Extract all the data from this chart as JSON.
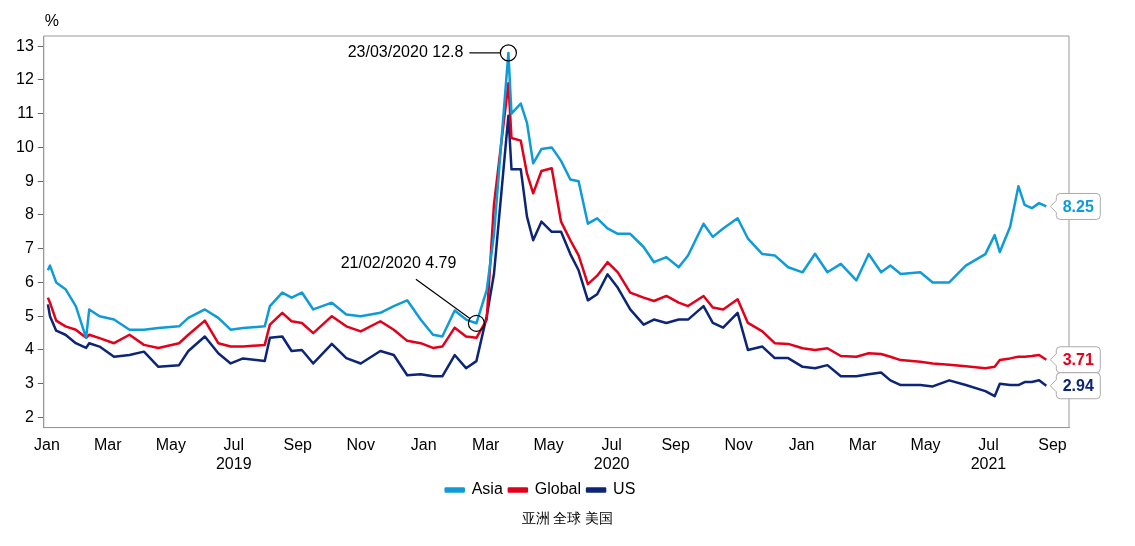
{
  "chart_data": {
    "type": "line",
    "ylabel": "%",
    "x": [
      "2019-01-02",
      "2019-01-04",
      "2019-01-10",
      "2019-01-19",
      "2019-01-29",
      "2019-02-08",
      "2019-02-11",
      "2019-02-21",
      "2019-03-07",
      "2019-03-22",
      "2019-04-05",
      "2019-04-19",
      "2019-05-09",
      "2019-05-18",
      "2019-06-03",
      "2019-06-16",
      "2019-06-28",
      "2019-07-10",
      "2019-07-31",
      "2019-08-05",
      "2019-08-17",
      "2019-08-26",
      "2019-09-05",
      "2019-09-16",
      "2019-10-04",
      "2019-10-18",
      "2019-11-01",
      "2019-11-20",
      "2019-12-03",
      "2019-12-16",
      "2019-12-29",
      "2020-01-10",
      "2020-01-19",
      "2020-01-31",
      "2020-02-11",
      "2020-02-21",
      "2020-03-02",
      "2020-03-09",
      "2020-03-23",
      "2020-03-26",
      "2020-04-04",
      "2020-04-10",
      "2020-04-16",
      "2020-04-24",
      "2020-05-04",
      "2020-05-13",
      "2020-05-22",
      "2020-05-30",
      "2020-06-08",
      "2020-06-17",
      "2020-06-27",
      "2020-07-07",
      "2020-07-19",
      "2020-08-01",
      "2020-08-11",
      "2020-08-23",
      "2020-09-04",
      "2020-09-13",
      "2020-09-28",
      "2020-10-07",
      "2020-10-17",
      "2020-10-31",
      "2020-11-10",
      "2020-11-24",
      "2020-12-06",
      "2020-12-19",
      "2021-01-02",
      "2021-01-14",
      "2021-01-26",
      "2021-02-08",
      "2021-02-23",
      "2021-03-07",
      "2021-03-19",
      "2021-03-28",
      "2021-04-07",
      "2021-04-26",
      "2021-05-08",
      "2021-05-24",
      "2021-06-09",
      "2021-06-28",
      "2021-07-07",
      "2021-07-12",
      "2021-07-22",
      "2021-07-30",
      "2021-08-05",
      "2021-08-12",
      "2021-08-19",
      "2021-08-26"
    ],
    "series": [
      {
        "name": "Asia",
        "color": "#0f9bd7",
        "values": [
          6.36,
          6.5,
          6.0,
          5.8,
          5.3,
          4.36,
          5.2,
          5.0,
          4.9,
          4.6,
          4.6,
          4.65,
          4.7,
          4.95,
          5.2,
          4.95,
          4.6,
          4.65,
          4.7,
          5.3,
          5.7,
          5.55,
          5.7,
          5.2,
          5.4,
          5.05,
          5.0,
          5.1,
          5.3,
          5.47,
          4.9,
          4.45,
          4.4,
          5.17,
          4.9,
          4.79,
          5.77,
          7.4,
          12.8,
          11.0,
          11.3,
          10.73,
          9.53,
          9.95,
          10.0,
          9.6,
          9.05,
          9.0,
          7.74,
          7.9,
          7.6,
          7.44,
          7.44,
          7.05,
          6.6,
          6.75,
          6.45,
          6.8,
          7.74,
          7.35,
          7.6,
          7.9,
          7.3,
          6.84,
          6.8,
          6.45,
          6.3,
          6.85,
          6.3,
          6.55,
          6.06,
          6.84,
          6.3,
          6.5,
          6.25,
          6.3,
          6.0,
          6.0,
          6.5,
          6.84,
          7.4,
          6.9,
          7.65,
          8.85,
          8.3,
          8.2,
          8.35,
          8.25
        ],
        "value_labels": [
          null,
          null,
          null,
          null,
          null,
          null,
          null,
          null,
          null,
          null,
          null,
          null,
          null,
          null,
          null,
          null,
          null,
          null,
          null,
          null,
          null,
          null,
          null,
          null,
          null,
          null,
          null,
          null,
          null,
          null,
          null,
          null,
          null,
          null,
          null,
          null,
          null,
          null,
          null,
          null,
          null,
          null,
          null,
          null,
          null,
          null,
          null,
          null,
          null,
          null,
          null,
          null,
          null,
          null,
          null,
          null,
          null,
          null,
          null,
          null,
          null,
          null,
          null,
          null,
          null,
          null,
          null,
          null,
          null,
          null,
          null,
          null,
          null,
          null,
          null,
          null,
          null,
          null,
          null,
          null,
          null,
          null,
          null,
          null,
          null,
          null,
          null,
          "8.25"
        ]
      },
      {
        "name": "Global",
        "color": "#e3001b",
        "values": [
          5.55,
          5.4,
          4.87,
          4.7,
          4.6,
          4.36,
          4.45,
          4.35,
          4.2,
          4.45,
          4.15,
          4.06,
          4.2,
          4.45,
          4.87,
          4.2,
          4.1,
          4.1,
          4.15,
          4.75,
          5.1,
          4.85,
          4.8,
          4.5,
          5.0,
          4.7,
          4.55,
          4.85,
          4.6,
          4.27,
          4.2,
          4.06,
          4.1,
          4.66,
          4.4,
          4.36,
          4.9,
          8.3,
          11.9,
          10.28,
          10.2,
          9.23,
          8.64,
          9.3,
          9.38,
          7.8,
          7.25,
          6.8,
          5.95,
          6.2,
          6.6,
          6.3,
          5.7,
          5.55,
          5.45,
          5.6,
          5.4,
          5.3,
          5.6,
          5.26,
          5.2,
          5.5,
          4.8,
          4.55,
          4.2,
          4.18,
          4.05,
          4.0,
          4.05,
          3.82,
          3.8,
          3.9,
          3.88,
          3.8,
          3.7,
          3.65,
          3.6,
          3.56,
          3.52,
          3.46,
          3.5,
          3.7,
          3.75,
          3.8,
          3.8,
          3.82,
          3.85,
          3.71
        ],
        "value_labels": [
          null,
          null,
          null,
          null,
          null,
          null,
          null,
          null,
          null,
          null,
          null,
          null,
          null,
          null,
          null,
          null,
          null,
          null,
          null,
          null,
          null,
          null,
          null,
          null,
          null,
          null,
          null,
          null,
          null,
          null,
          null,
          null,
          null,
          null,
          null,
          null,
          null,
          null,
          null,
          null,
          null,
          null,
          null,
          null,
          null,
          null,
          null,
          null,
          null,
          null,
          null,
          null,
          null,
          null,
          null,
          null,
          null,
          null,
          null,
          null,
          null,
          null,
          null,
          null,
          null,
          null,
          null,
          null,
          null,
          null,
          null,
          null,
          null,
          null,
          null,
          null,
          null,
          null,
          null,
          null,
          null,
          null,
          null,
          null,
          null,
          null,
          null,
          "3.71"
        ]
      },
      {
        "name": "US",
        "color": "#0c2577",
        "values": [
          5.35,
          5.0,
          4.57,
          4.45,
          4.2,
          4.06,
          4.2,
          4.1,
          3.8,
          3.85,
          3.95,
          3.5,
          3.55,
          3.97,
          4.4,
          3.9,
          3.6,
          3.75,
          3.67,
          4.36,
          4.4,
          3.97,
          4.0,
          3.6,
          4.18,
          3.76,
          3.6,
          3.97,
          3.85,
          3.25,
          3.28,
          3.22,
          3.22,
          3.85,
          3.46,
          3.67,
          5.0,
          6.24,
          10.94,
          9.35,
          9.35,
          7.95,
          7.25,
          7.8,
          7.5,
          7.5,
          6.84,
          6.36,
          5.47,
          5.65,
          6.24,
          5.84,
          5.2,
          4.75,
          4.9,
          4.8,
          4.9,
          4.9,
          5.3,
          4.8,
          4.66,
          5.1,
          4.0,
          4.1,
          3.76,
          3.76,
          3.5,
          3.46,
          3.55,
          3.22,
          3.22,
          3.28,
          3.33,
          3.1,
          2.96,
          2.96,
          2.92,
          3.1,
          2.96,
          2.78,
          2.63,
          3.0,
          2.96,
          2.96,
          3.05,
          3.05,
          3.1,
          2.94
        ],
        "value_labels": [
          null,
          null,
          null,
          null,
          null,
          null,
          null,
          null,
          null,
          null,
          null,
          null,
          null,
          null,
          null,
          null,
          null,
          null,
          null,
          null,
          null,
          null,
          null,
          null,
          null,
          null,
          null,
          null,
          null,
          null,
          null,
          null,
          null,
          null,
          null,
          null,
          null,
          null,
          null,
          null,
          null,
          null,
          null,
          null,
          null,
          null,
          null,
          null,
          null,
          null,
          null,
          null,
          null,
          null,
          null,
          null,
          null,
          null,
          null,
          null,
          null,
          null,
          null,
          null,
          null,
          null,
          null,
          null,
          null,
          null,
          null,
          null,
          null,
          null,
          null,
          null,
          null,
          null,
          null,
          null,
          null,
          null,
          null,
          null,
          null,
          null,
          null,
          "2.94"
        ]
      }
    ],
    "xlim": [
      "2018-12-29",
      "2021-09-17"
    ],
    "xticks": [
      {
        "value": "2019-01-01",
        "label": "Jan"
      },
      {
        "value": "2019-03-01",
        "label": "Mar"
      },
      {
        "value": "2019-05-01",
        "label": "May"
      },
      {
        "value": "2019-07-01",
        "label": "Jul\n2019"
      },
      {
        "value": "2019-09-01",
        "label": "Sep"
      },
      {
        "value": "2019-11-01",
        "label": "Nov"
      },
      {
        "value": "2020-01-01",
        "label": "Jan"
      },
      {
        "value": "2020-03-01",
        "label": "Mar"
      },
      {
        "value": "2020-05-01",
        "label": "May"
      },
      {
        "value": "2020-07-01",
        "label": "Jul\n2020"
      },
      {
        "value": "2020-09-01",
        "label": "Sep"
      },
      {
        "value": "2020-11-01",
        "label": "Nov"
      },
      {
        "value": "2021-01-01",
        "label": "Jan"
      },
      {
        "value": "2021-03-01",
        "label": "Mar"
      },
      {
        "value": "2021-05-01",
        "label": "May"
      },
      {
        "value": "2021-07-01",
        "label": "Jul\n2021"
      },
      {
        "value": "2021-09-01",
        "label": "Sep"
      }
    ],
    "ylim": [
      1.7,
      13.3
    ],
    "yticks": [
      2,
      3,
      4,
      5,
      6,
      7,
      8,
      9,
      10,
      11,
      12,
      13
    ],
    "grid": false,
    "legend": "bottom",
    "marker": "none",
    "line_style": "solid",
    "annotations": [
      {
        "text": "23/03/2020 12.8",
        "x": "2020-03-23",
        "y": 12.8
      },
      {
        "text": "21/02/2020 4.79",
        "x": "2020-02-21",
        "y": 4.79
      },
      "亚洲  全球  美国"
    ]
  }
}
